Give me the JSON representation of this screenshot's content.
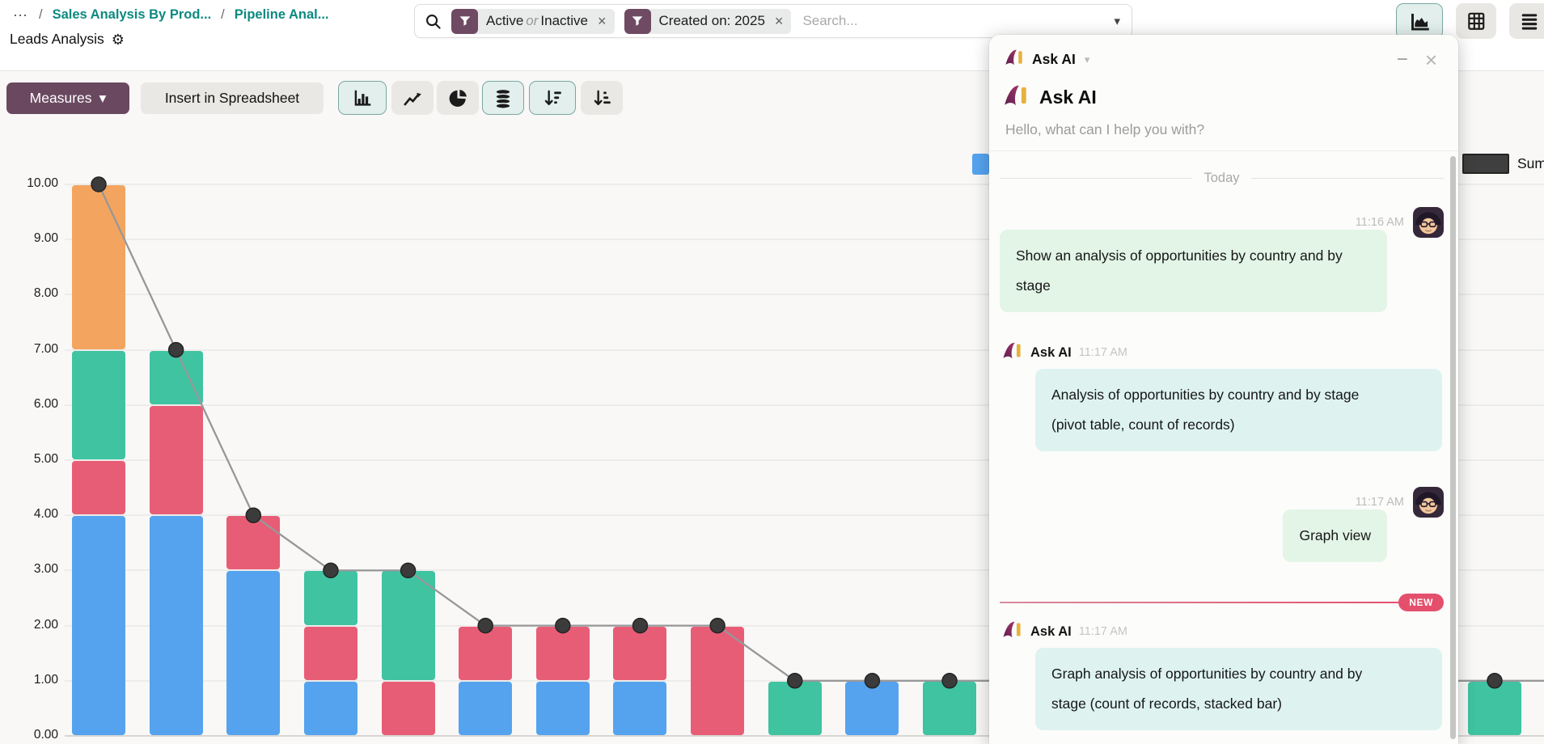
{
  "breadcrumb": {
    "separator": "/",
    "items": [
      "Sales Analysis By Prod...",
      "Pipeline Anal..."
    ],
    "current": "Leads Analysis"
  },
  "search": {
    "filter1": {
      "pre": "Active",
      "conj": "or",
      "post": "Inactive"
    },
    "filter2": {
      "label": "Created on: 2025"
    },
    "placeholder": "Search..."
  },
  "toolbar": {
    "measures_label": "Measures",
    "spreadsheet_label": "Insert in Spreadsheet"
  },
  "legend": {
    "sum_label": "Sum",
    "sum_color": "#3f3f3f"
  },
  "colors": {
    "brand_purple": "#6e4b62",
    "link_teal": "#0c8a80",
    "selected_button_border": "#7aa8a1",
    "new_badge": "#e4506c",
    "user_bubble": "#e2f5e6",
    "ai_bubble": "#def3f0"
  },
  "chart_data": {
    "type": "bar",
    "stacked": true,
    "title": "",
    "xlabel": "",
    "ylabel": "",
    "x_labels_visible": false,
    "categories": [
      "",
      "",
      "",
      "",
      "",
      "",
      "",
      "",
      "",
      "",
      "",
      ""
    ],
    "series": [
      {
        "name": "series-blue",
        "color": "#55a3ef",
        "values": [
          4,
          4,
          3,
          1,
          0,
          1,
          1,
          1,
          0,
          0,
          1,
          0
        ]
      },
      {
        "name": "series-red",
        "color": "#e85d76",
        "values": [
          1,
          2,
          1,
          1,
          1,
          1,
          1,
          1,
          2,
          0,
          0,
          0
        ]
      },
      {
        "name": "series-teal",
        "color": "#3fc3a1",
        "values": [
          2,
          1,
          0,
          1,
          2,
          0,
          0,
          0,
          0,
          1,
          0,
          1
        ]
      },
      {
        "name": "series-orange",
        "color": "#f3a55f",
        "values": [
          3,
          0,
          0,
          0,
          0,
          0,
          0,
          0,
          0,
          0,
          0,
          0
        ]
      }
    ],
    "line_series": {
      "name": "Sum",
      "color": "#97979a",
      "dot_color": "#3b3b3b",
      "values": [
        10,
        7,
        4,
        3,
        3,
        2,
        2,
        2,
        2,
        1,
        1,
        1
      ]
    },
    "right_edge_partial_bar": {
      "series": "series-teal",
      "value": 1,
      "line_value": 1
    },
    "ylim": [
      0,
      10
    ],
    "yticks": [
      "10.00",
      "9.00",
      "8.00",
      "7.00",
      "6.00",
      "5.00",
      "4.00",
      "3.00",
      "2.00",
      "1.00",
      "0.00"
    ],
    "grid": true,
    "legend_position": "top-right"
  },
  "chat": {
    "title": "Ask AI",
    "greeting_title": "Ask AI",
    "greeting_subtitle": "Hello, what can I help you with?",
    "day_divider": "Today",
    "new_badge": "NEW",
    "messages": [
      {
        "role": "user",
        "time": "11:16 AM",
        "text": "Show an analysis of opportunities by country and by stage"
      },
      {
        "role": "ai",
        "author": "Ask AI",
        "time": "11:17 AM",
        "text": "Analysis of opportunities by country and by stage (pivot table, count of records)"
      },
      {
        "role": "user",
        "time": "11:17 AM",
        "text": "Graph view"
      },
      {
        "role": "ai",
        "author": "Ask AI",
        "time": "11:17 AM",
        "text": "Graph analysis of opportunities by country and by stage (count of records, stacked bar)"
      }
    ]
  }
}
